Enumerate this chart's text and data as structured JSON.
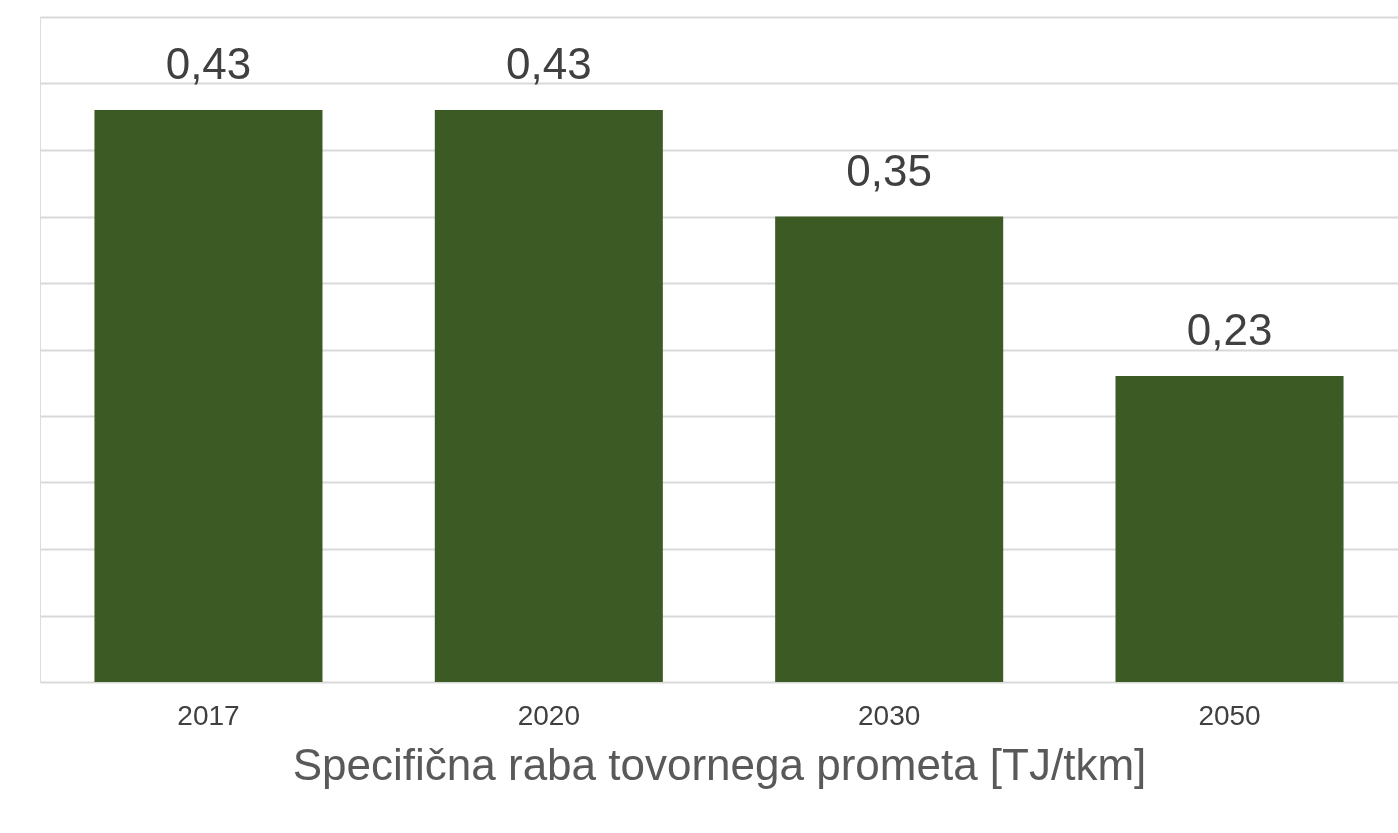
{
  "chart_data": {
    "type": "bar",
    "xlabel": "Specifična raba tovornega prometa [TJ/tkm]",
    "categories": [
      "2017",
      "2020",
      "2030",
      "2050"
    ],
    "values": [
      0.43,
      0.43,
      0.35,
      0.23
    ],
    "value_labels": [
      "0,43",
      "0,43",
      "0,35",
      "0,23"
    ],
    "color": "#3b5a24",
    "ylim": [
      0,
      0.5
    ],
    "yticks": [
      {
        "value": 0,
        "label": null
      },
      {
        "value": 0.05,
        "label": null
      },
      {
        "value": 0.1,
        "label": null
      },
      {
        "value": 0.15,
        "label": null
      },
      {
        "value": 0.2,
        "label": null
      },
      {
        "value": 0.25,
        "label": null
      },
      {
        "value": 0.3,
        "label": null
      },
      {
        "value": 0.35,
        "label": null
      },
      {
        "value": 0.4,
        "label": null
      },
      {
        "value": 0.45,
        "label": null
      },
      {
        "value": 0.5,
        "label": null
      }
    ],
    "grid": "y",
    "tick_labels": "x"
  }
}
